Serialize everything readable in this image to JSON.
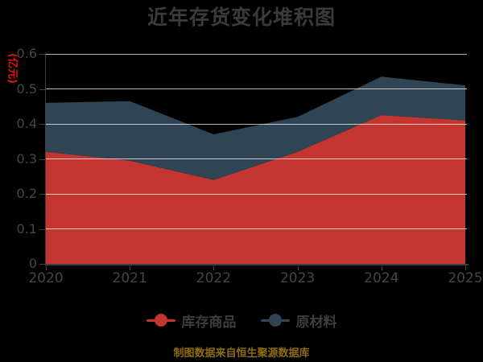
{
  "title": "近年存货变化堆积图",
  "y_axis": {
    "name": "(亿元)",
    "ticks": [
      "0",
      "0.1",
      "0.2",
      "0.3",
      "0.4",
      "0.5",
      "0.6"
    ],
    "max": 0.6
  },
  "x_axis": {
    "categories": [
      "2020",
      "2021",
      "2022",
      "2023",
      "2024",
      "2025"
    ]
  },
  "chart_data": {
    "type": "area",
    "stacked": true,
    "title": "近年存货变化堆积图",
    "ylabel": "(亿元)",
    "xlabel": "",
    "ylim": [
      0,
      0.6
    ],
    "grid": true,
    "legend_position": "bottom",
    "x": [
      2020,
      2021,
      2022,
      2023,
      2024,
      2025
    ],
    "series": [
      {
        "name": "库存商品",
        "color": "#c23531",
        "values": [
          0.32,
          0.295,
          0.24,
          0.32,
          0.425,
          0.41
        ]
      },
      {
        "name": "原材料",
        "color": "#2f4554",
        "values": [
          0.14,
          0.17,
          0.13,
          0.1,
          0.11,
          0.1
        ]
      }
    ],
    "stacked_totals": [
      0.46,
      0.465,
      0.37,
      0.42,
      0.535,
      0.51
    ]
  },
  "legend": {
    "items": [
      {
        "label": "库存商品",
        "color": "#c23531"
      },
      {
        "label": "原材料",
        "color": "#2f4554"
      }
    ]
  },
  "footer": {
    "caption": "制图数据来自恒生聚源数据库"
  },
  "colors": {
    "background": "#000000",
    "title_text": "#3a3a3a",
    "axis_label": "#454545",
    "axis_line": "#3f3f3f",
    "grid_line": "#cccccc",
    "y_axis_name": "#dd1515",
    "series_inventory_goods": "#c23531",
    "series_raw_materials": "#2f4554",
    "caption_text": "#8d6c12"
  }
}
